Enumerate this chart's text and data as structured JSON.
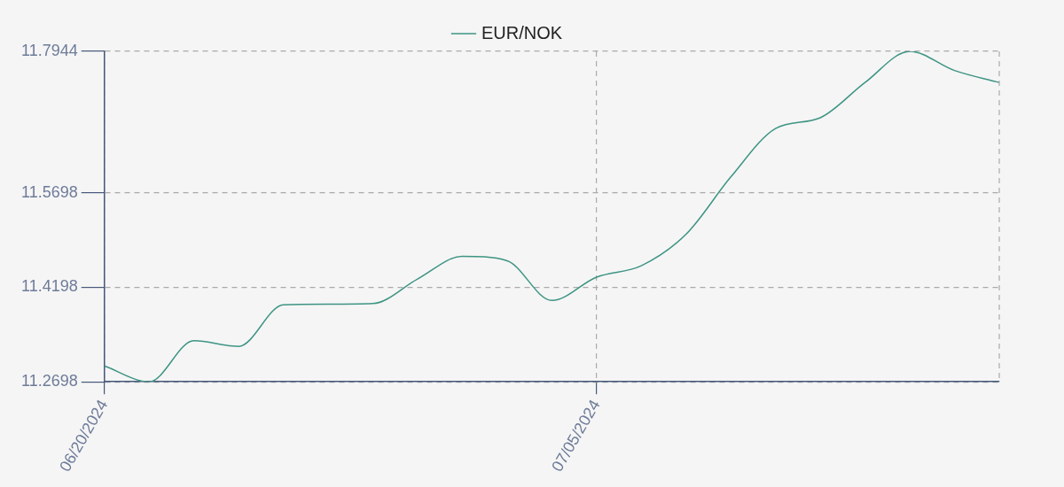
{
  "chart_data": {
    "type": "line",
    "categories": [
      "06/20/2024",
      null,
      null,
      null,
      null,
      null,
      null,
      null,
      null,
      null,
      null,
      "07/05/2024",
      null,
      null,
      null,
      null,
      null,
      null,
      null,
      null,
      null
    ],
    "series": [
      {
        "name": "EUR/NOK",
        "color": "#3d9483",
        "values": [
          11.295,
          11.2698,
          11.335,
          11.326,
          11.392,
          11.393,
          11.394,
          11.433,
          11.469,
          11.462,
          11.399,
          11.436,
          11.454,
          11.504,
          11.595,
          11.672,
          11.689,
          11.745,
          11.7944,
          11.764,
          11.745
        ]
      }
    ],
    "ylim": [
      11.2698,
      11.7944
    ],
    "yticks": [
      11.2698,
      11.4198,
      11.5698,
      11.7944
    ],
    "grid": true,
    "legend": "top",
    "marker": "none",
    "line_style": "solid"
  }
}
